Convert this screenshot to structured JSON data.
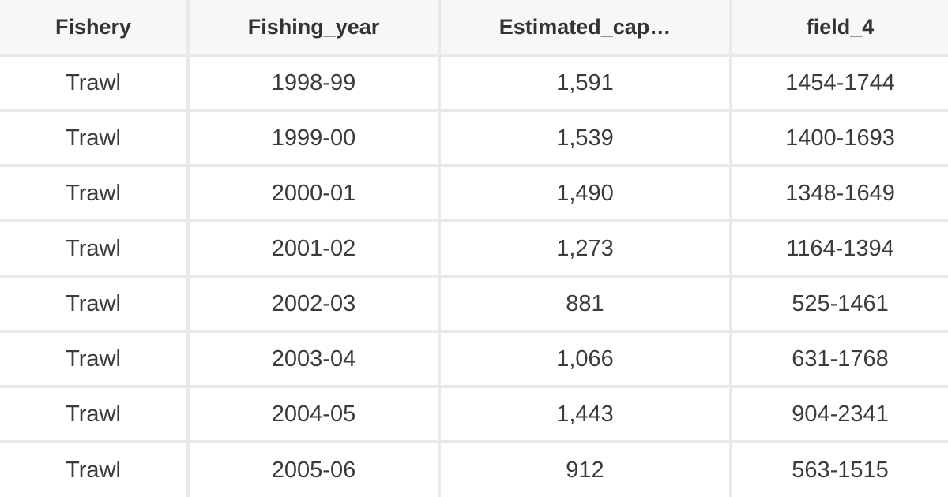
{
  "colors": {
    "header_background": "#f7f7f7",
    "cell_background": "#ffffff",
    "divider": "#e9e9e9",
    "header_text": "#333333",
    "body_text": "#3b3b3b"
  },
  "chart_data": {
    "type": "table",
    "columns": [
      "Fishery",
      "Fishing_year",
      "Estimated_cap…",
      "field_4"
    ],
    "rows": [
      [
        "Trawl",
        "1998-99",
        "1,591",
        "1454-1744"
      ],
      [
        "Trawl",
        "1999-00",
        "1,539",
        "1400-1693"
      ],
      [
        "Trawl",
        "2000-01",
        "1,490",
        "1348-1649"
      ],
      [
        "Trawl",
        "2001-02",
        "1,273",
        "1164-1394"
      ],
      [
        "Trawl",
        "2002-03",
        "881",
        "525-1461"
      ],
      [
        "Trawl",
        "2003-04",
        "1,066",
        "631-1768"
      ],
      [
        "Trawl",
        "2004-05",
        "1,443",
        "904-2341"
      ],
      [
        "Trawl",
        "2005-06",
        "912",
        "563-1515"
      ]
    ]
  }
}
